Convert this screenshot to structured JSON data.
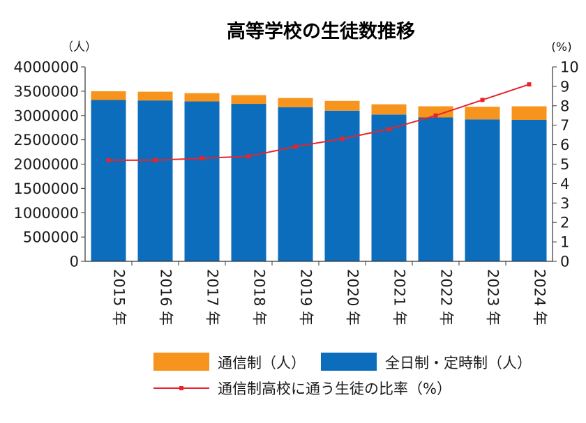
{
  "chart_data": {
    "type": "bar",
    "title": "高等学校の生徒数推移",
    "y_left_unit": "（人）",
    "y_right_unit": "(%)",
    "categories": [
      "2015 年",
      "2016 年",
      "2017 年",
      "2018 年",
      "2019 年",
      "2020 年",
      "2021 年",
      "2022 年",
      "2023 年",
      "2024 年"
    ],
    "stacked": true,
    "series": [
      {
        "name": "全日制・定時制（人）",
        "type": "bar",
        "axis": "left",
        "color": "#0b6dbb",
        "values": [
          3320000,
          3310000,
          3290000,
          3240000,
          3170000,
          3100000,
          3020000,
          2960000,
          2920000,
          2910000
        ]
      },
      {
        "name": "通信制（人）",
        "type": "bar",
        "axis": "left",
        "color": "#f7941d",
        "values": [
          180000,
          180000,
          170000,
          180000,
          190000,
          200000,
          210000,
          230000,
          260000,
          280000
        ]
      },
      {
        "name": "通信制高校に通う生徒の比率（%）",
        "type": "line",
        "axis": "right",
        "color": "#e8242b",
        "values": [
          5.2,
          5.2,
          5.3,
          5.4,
          5.9,
          6.3,
          6.8,
          7.5,
          8.3,
          9.1
        ]
      }
    ],
    "y_left": {
      "min": 0,
      "max": 4000000,
      "ticks": [
        "0",
        "500000",
        "1000000",
        "1500000",
        "2000000",
        "2500000",
        "3000000",
        "3500000",
        "4000000"
      ]
    },
    "y_right": {
      "min": 0,
      "max": 10,
      "ticks": [
        "0",
        "1",
        "2",
        "3",
        "4",
        "5",
        "6",
        "7",
        "8",
        "9",
        "10"
      ]
    },
    "grid": false,
    "legend_position": "bottom"
  },
  "legend": {
    "tsushin": "通信制（人）",
    "zennichi": "全日制・定時制（人）",
    "ratio": "通信制高校に通う生徒の比率（%）"
  }
}
